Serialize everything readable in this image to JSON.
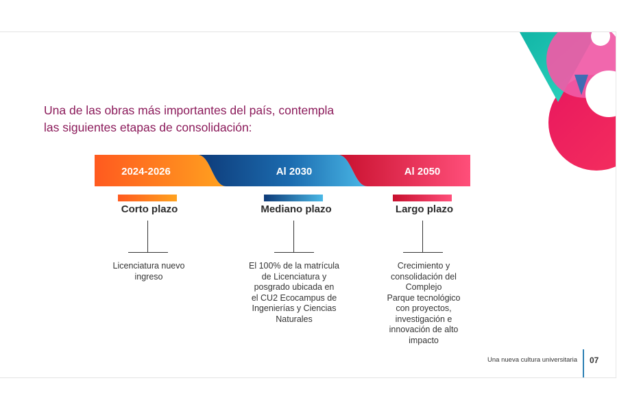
{
  "heading": {
    "line1": "Una de las obras más importantes del país, contempla",
    "line2": "las siguientes etapas de consolidación:"
  },
  "phases": [
    {
      "year": "2024-2026",
      "term": "Corto plazo",
      "description": [
        "Licenciatura nuevo",
        "ingreso"
      ],
      "color_start": "#ff5a1f",
      "color_end": "#ffa21f"
    },
    {
      "year": "Al 2030",
      "term": "Mediano plazo",
      "description": [
        "El 100% de la matrícula",
        "de Licenciatura y",
        "posgrado ubicada en",
        "el CU2 Ecocampus de",
        "Ingenierías y Ciencias",
        "Naturales"
      ],
      "color_start": "#0d3a78",
      "color_end": "#4ab8e6"
    },
    {
      "year": "Al 2050",
      "term": "Largo plazo",
      "description": [
        "Crecimiento y",
        "consolidación del",
        "Complejo",
        "Parque tecnológico",
        "con proyectos,",
        "investigación e",
        "innovación de alto",
        "impacto"
      ],
      "color_start": "#c8102e",
      "color_end": "#ff4f7a"
    }
  ],
  "footer": {
    "text": "Una nueva cultura universitaria",
    "page": "07"
  },
  "colors": {
    "heading": "#8b1a5a",
    "accent_blue": "#2b7fb3",
    "deco_teal": "#1fc8b5",
    "deco_pink": "#e8175d",
    "deco_magenta": "#f05aa6"
  }
}
